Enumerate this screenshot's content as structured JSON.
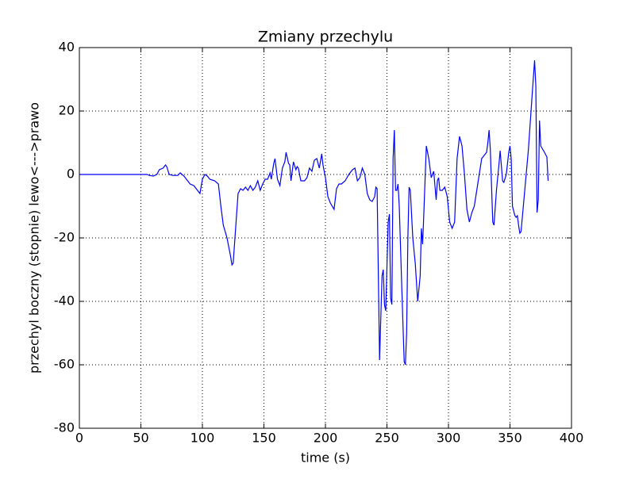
{
  "chart_data": {
    "type": "line",
    "title": "Zmiany przechylu",
    "x_label": "time (s)",
    "y_label": "przechyl boczny (stopnie) lewo<--->prawo",
    "xlim": [
      0,
      400
    ],
    "ylim": [
      -80,
      40
    ],
    "xticks": [
      0,
      50,
      100,
      150,
      200,
      250,
      300,
      350,
      400
    ],
    "yticks": [
      -80,
      -60,
      -40,
      -20,
      0,
      20,
      40
    ],
    "grid": true,
    "series": [
      {
        "color": "#0000ff",
        "x": [
          0,
          10,
          20,
          30,
          40,
          50,
          55,
          57,
          60,
          63,
          65,
          68,
          70,
          71,
          73,
          76,
          80,
          82,
          85,
          88,
          90,
          93,
          96,
          98,
          100,
          102,
          104,
          106,
          110,
          113,
          115,
          117,
          120,
          123,
          124,
          125,
          127,
          129,
          131,
          133,
          135,
          137,
          139,
          141,
          143,
          145,
          147,
          149,
          151,
          153,
          155,
          156,
          158,
          159,
          161,
          163,
          165,
          167,
          168,
          170,
          171,
          172,
          174,
          176,
          177,
          178,
          180,
          183,
          185,
          187,
          189,
          191,
          193,
          195,
          197,
          198,
          200,
          202,
          204,
          207,
          209,
          211,
          213,
          216,
          219,
          222,
          224,
          226,
          228,
          230,
          232,
          234,
          236,
          238,
          240,
          241,
          242,
          244,
          246,
          247,
          248,
          249,
          251,
          252,
          253,
          254,
          255,
          256,
          257,
          258,
          259,
          260,
          262,
          264,
          265,
          266,
          267,
          268,
          269,
          271,
          273,
          275,
          277,
          278,
          279,
          280,
          282,
          284,
          286,
          288,
          290,
          291,
          292,
          293,
          295,
          297,
          299,
          301,
          303,
          305,
          307,
          309,
          311,
          313,
          315,
          317,
          319,
          321,
          323,
          325,
          327,
          329,
          331,
          332,
          333,
          334,
          336,
          337,
          339,
          341,
          342,
          344,
          345,
          347,
          349,
          350,
          351,
          352,
          354,
          355,
          356,
          357,
          358,
          359,
          362,
          365,
          368,
          370,
          371,
          372,
          373,
          374,
          375,
          378,
          380,
          381
        ],
        "values": [
          0,
          0,
          0,
          0,
          0,
          0,
          0,
          -0.3,
          -0.5,
          0,
          1.5,
          2,
          3,
          2.5,
          0,
          -0.3,
          -0.3,
          0.5,
          -0.5,
          -2,
          -3,
          -3.5,
          -5,
          -6,
          -1.5,
          0,
          -0.5,
          -1.5,
          -2,
          -3,
          -10,
          -16,
          -20,
          -26,
          -28.5,
          -28,
          -17,
          -6,
          -4.5,
          -5,
          -4,
          -5,
          -3.5,
          -5,
          -4,
          -2,
          -5,
          -3,
          -1.5,
          -1.5,
          0.5,
          -1.5,
          3.5,
          5,
          -1.5,
          -3.5,
          2,
          4,
          7,
          3.5,
          3,
          -2,
          4,
          1.5,
          2.5,
          2,
          -2,
          -2,
          -1,
          2,
          1,
          4.5,
          5,
          2,
          6.5,
          3,
          -1,
          -7,
          -9,
          -11,
          -4.5,
          -3,
          -3,
          -2,
          0,
          1.5,
          2,
          -2,
          -1,
          2,
          0,
          -6,
          -8,
          -8.5,
          -7,
          -4,
          -4.5,
          -58.5,
          -32,
          -30,
          -41,
          -43,
          -15,
          -12.5,
          -39,
          -41,
          5,
          14,
          -5,
          -5,
          -3,
          -10,
          -35,
          -59,
          -60,
          -50,
          -20,
          -4,
          -5,
          -20,
          -28,
          -40,
          -32,
          -17,
          -22,
          -12,
          9,
          5,
          -1,
          1,
          -8,
          -2,
          -1,
          -5,
          -5,
          -4,
          -7,
          -15,
          -17,
          -15,
          5,
          12,
          9,
          0,
          -11,
          -15,
          -12,
          -10,
          -5,
          0,
          5,
          6,
          7,
          10,
          14,
          8,
          -15,
          -16,
          -5,
          3,
          7.5,
          -2,
          -2.5,
          0,
          7,
          9,
          5,
          -10,
          -13,
          -13.5,
          -13,
          -16,
          -18.5,
          -18,
          -5,
          8,
          25,
          36,
          28,
          -12,
          -8,
          17,
          9,
          7,
          5.5,
          -2
        ]
      }
    ]
  }
}
